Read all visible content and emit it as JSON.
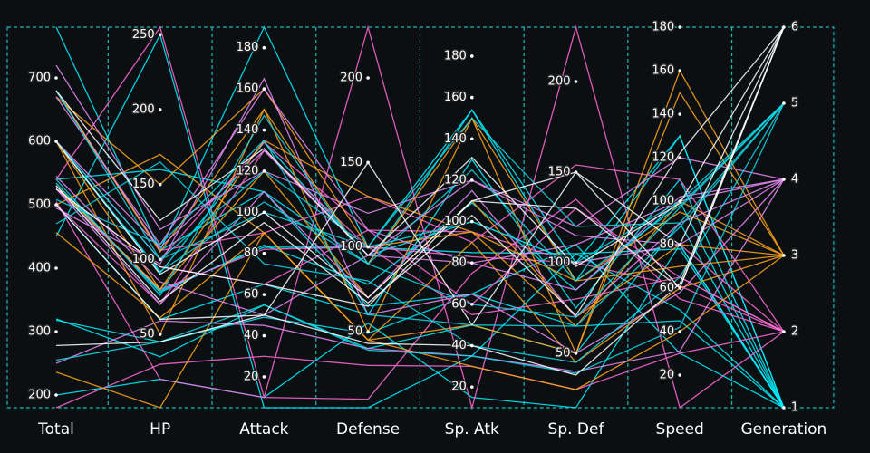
{
  "chart_data": {
    "type": "parallel",
    "dimensions": [
      {
        "label": "Total",
        "range": [
          180,
          780
        ],
        "ticks": [
          200,
          300,
          400,
          500,
          600,
          700
        ]
      },
      {
        "label": "HP",
        "range": [
          1,
          255
        ],
        "ticks": [
          50,
          100,
          150,
          200,
          250
        ]
      },
      {
        "label": "Attack",
        "range": [
          5,
          190
        ],
        "ticks": [
          20,
          40,
          60,
          80,
          100,
          120,
          140,
          160,
          180
        ]
      },
      {
        "label": "Defense",
        "range": [
          5,
          230
        ],
        "ticks": [
          50,
          100,
          150,
          200
        ]
      },
      {
        "label": "Sp. Atk",
        "range": [
          10,
          194
        ],
        "ticks": [
          20,
          40,
          60,
          80,
          100,
          120,
          140,
          160,
          180
        ]
      },
      {
        "label": "Sp. Def",
        "range": [
          20,
          230
        ],
        "ticks": [
          50,
          100,
          150,
          200
        ]
      },
      {
        "label": "Speed",
        "range": [
          5,
          180
        ],
        "ticks": [
          20,
          40,
          60,
          80,
          100,
          120,
          140,
          160,
          180
        ]
      },
      {
        "label": "Generation",
        "range": [
          1,
          6
        ],
        "ticks": [
          1,
          2,
          3,
          4,
          5,
          6
        ]
      }
    ],
    "line_colors": [
      "#00f0ff",
      "#ff6ad5",
      "#ffa41b",
      "#e98bf5",
      "#12d8e6",
      "#ffffff"
    ],
    "rows": [
      [
        318,
        45,
        49,
        49,
        65,
        65,
        45,
        1
      ],
      [
        534,
        78,
        84,
        78,
        109,
        85,
        100,
        1
      ],
      [
        530,
        79,
        83,
        100,
        85,
        105,
        78,
        1
      ],
      [
        320,
        35,
        55,
        40,
        50,
        50,
        90,
        1
      ],
      [
        450,
        250,
        5,
        5,
        35,
        105,
        50,
        1
      ],
      [
        680,
        106,
        110,
        90,
        154,
        90,
        130,
        1
      ],
      [
        500,
        60,
        65,
        60,
        130,
        75,
        110,
        1
      ],
      [
        540,
        160,
        110,
        65,
        65,
        110,
        30,
        1
      ],
      [
        600,
        91,
        134,
        95,
        100,
        100,
        80,
        1
      ],
      [
        200,
        20,
        10,
        55,
        15,
        20,
        80,
        1
      ],
      [
        780,
        106,
        190,
        100,
        154,
        100,
        130,
        1
      ],
      [
        525,
        80,
        82,
        100,
        83,
        100,
        80,
        2
      ],
      [
        540,
        255,
        10,
        10,
        75,
        135,
        55,
        2
      ],
      [
        505,
        20,
        10,
        230,
        10,
        230,
        5,
        2
      ],
      [
        600,
        100,
        134,
        110,
        95,
        100,
        61,
        2
      ],
      [
        680,
        106,
        90,
        130,
        90,
        154,
        110,
        2
      ],
      [
        180,
        30,
        30,
        30,
        30,
        30,
        30,
        2
      ],
      [
        525,
        95,
        65,
        110,
        60,
        130,
        65,
        2
      ],
      [
        500,
        70,
        130,
        100,
        55,
        80,
        65,
        2
      ],
      [
        530,
        80,
        120,
        70,
        110,
        70,
        80,
        3
      ],
      [
        670,
        150,
        160,
        100,
        95,
        65,
        100,
        3
      ],
      [
        236,
        1,
        90,
        45,
        30,
        30,
        40,
        3
      ],
      [
        680,
        105,
        150,
        90,
        150,
        90,
        95,
        3
      ],
      [
        456,
        61,
        90,
        45,
        50,
        50,
        160,
        3
      ],
      [
        600,
        80,
        135,
        130,
        95,
        90,
        70,
        3
      ],
      [
        500,
        170,
        90,
        45,
        90,
        45,
        60,
        3
      ],
      [
        600,
        50,
        150,
        50,
        150,
        50,
        150,
        3
      ],
      [
        600,
        108,
        130,
        95,
        80,
        85,
        102,
        4
      ],
      [
        525,
        70,
        110,
        70,
        115,
        70,
        90,
        4
      ],
      [
        720,
        120,
        120,
        120,
        120,
        120,
        120,
        4
      ],
      [
        250,
        59,
        45,
        40,
        35,
        40,
        31,
        4
      ],
      [
        495,
        97,
        165,
        60,
        65,
        50,
        58,
        4
      ],
      [
        670,
        110,
        160,
        110,
        80,
        110,
        100,
        4
      ],
      [
        545,
        85,
        50,
        95,
        120,
        115,
        80,
        4
      ],
      [
        600,
        92,
        105,
        90,
        125,
        90,
        98,
        5
      ],
      [
        540,
        76,
        147,
        90,
        60,
        70,
        97,
        5
      ],
      [
        470,
        165,
        75,
        80,
        40,
        45,
        65,
        5
      ],
      [
        600,
        100,
        100,
        100,
        100,
        100,
        100,
        5
      ],
      [
        255,
        45,
        55,
        39,
        35,
        39,
        42,
        5
      ],
      [
        508,
        110,
        135,
        60,
        50,
        65,
        88,
        5
      ],
      [
        680,
        100,
        120,
        100,
        150,
        120,
        90,
        5
      ],
      [
        530,
        72,
        95,
        67,
        103,
        71,
        122,
        6
      ],
      [
        500,
        60,
        50,
        150,
        50,
        150,
        60,
        6
      ],
      [
        680,
        126,
        131,
        95,
        131,
        98,
        99,
        6
      ],
      [
        525,
        95,
        65,
        65,
        110,
        130,
        60,
        6
      ],
      [
        278,
        45,
        50,
        43,
        40,
        38,
        62,
        6
      ],
      [
        600,
        90,
        100,
        70,
        110,
        150,
        80,
        6
      ]
    ]
  }
}
